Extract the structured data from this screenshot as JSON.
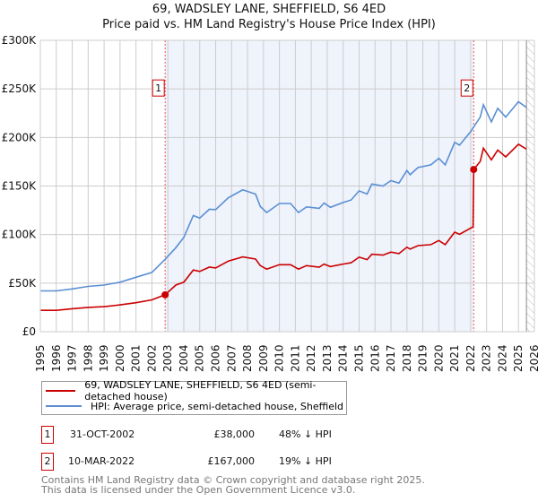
{
  "title": "69, WADSLEY LANE, SHEFFIELD, S6 4ED",
  "subtitle": "Price paid vs. HM Land Registry's House Price Index (HPI)",
  "colors": {
    "property": "#cc0000",
    "hpi": "#5b8fd4",
    "shade": "#eef3fc"
  },
  "chart_data": {
    "type": "line",
    "title": "69, WADSLEY LANE, SHEFFIELD, S6 4ED",
    "ylabel": "",
    "xlabel": "",
    "xlim": [
      1995,
      2026
    ],
    "ylim": [
      0,
      300000
    ],
    "yticks": [
      {
        "v": 0,
        "label": "£0"
      },
      {
        "v": 50000,
        "label": "£50K"
      },
      {
        "v": 100000,
        "label": "£100K"
      },
      {
        "v": 150000,
        "label": "£150K"
      },
      {
        "v": 200000,
        "label": "£200K"
      },
      {
        "v": 250000,
        "label": "£250K"
      },
      {
        "v": 300000,
        "label": "£300K"
      }
    ],
    "xticks": [
      "1995",
      "1996",
      "1997",
      "1998",
      "1999",
      "2000",
      "2001",
      "2002",
      "2003",
      "2004",
      "2005",
      "2006",
      "2007",
      "2008",
      "2009",
      "2010",
      "2011",
      "2012",
      "2013",
      "2014",
      "2015",
      "2016",
      "2017",
      "2018",
      "2019",
      "2020",
      "2021",
      "2022",
      "2023",
      "2024",
      "2025",
      "2026"
    ],
    "grid": true,
    "shaded_range": [
      2002.83,
      2022.19
    ],
    "forecast_hatch_from": 2025.5,
    "series": [
      {
        "name": "69, WADSLEY LANE, SHEFFIELD, S6 4ED (semi-detached house)",
        "color": "#cc0000",
        "x": [
          1995,
          1996,
          1997,
          1998,
          1999,
          2000,
          2001,
          2002,
          2002.83,
          2003.5,
          2004,
          2004.6,
          2005,
          2005.6,
          2006,
          2006.8,
          2007.7,
          2008.5,
          2008.8,
          2009.2,
          2010,
          2010.7,
          2011.2,
          2011.7,
          2012.5,
          2012.8,
          2013.2,
          2014,
          2014.5,
          2015,
          2015.5,
          2015.8,
          2016.5,
          2017,
          2017.5,
          2018,
          2018.2,
          2018.7,
          2019.5,
          2020,
          2020.4,
          2021,
          2021.3,
          2022.15,
          2022.19,
          2022.6,
          2022.8,
          2023.3,
          2023.7,
          2024.2,
          2025,
          2025.5
        ],
        "y": [
          22000,
          22000,
          23600,
          25000,
          25800,
          27600,
          29800,
          32800,
          38000,
          48000,
          51000,
          63500,
          62000,
          66500,
          65600,
          72700,
          77000,
          74800,
          68000,
          64400,
          69000,
          69000,
          64400,
          68000,
          66500,
          69600,
          67000,
          69600,
          71000,
          76700,
          74200,
          79800,
          78800,
          82000,
          80400,
          87000,
          85000,
          88600,
          89600,
          93900,
          89600,
          102500,
          100300,
          108000,
          167000,
          175400,
          189000,
          177000,
          187000,
          180000,
          193000,
          188000
        ]
      },
      {
        "name": "HPI: Average price, semi-detached house, Sheffield",
        "color": "#5b8fd4",
        "x": [
          1995,
          1996,
          1997,
          1998,
          1999,
          2000,
          2001,
          2002,
          2002.8,
          2003.5,
          2004,
          2004.6,
          2005,
          2005.6,
          2006,
          2006.8,
          2007.7,
          2008.5,
          2008.8,
          2009.2,
          2010,
          2010.7,
          2011.2,
          2011.7,
          2012.5,
          2012.8,
          2013.2,
          2014,
          2014.5,
          2015,
          2015.5,
          2015.8,
          2016.5,
          2017,
          2017.5,
          2018,
          2018.2,
          2018.7,
          2019.5,
          2020,
          2020.4,
          2021,
          2021.3,
          2022,
          2022.6,
          2022.8,
          2023.3,
          2023.7,
          2024.2,
          2025,
          2025.5
        ],
        "y": [
          42000,
          42000,
          44000,
          46600,
          48000,
          51000,
          56000,
          61000,
          74000,
          86500,
          97000,
          119600,
          117000,
          126000,
          125700,
          138000,
          146000,
          141700,
          129000,
          122700,
          132000,
          132000,
          122700,
          128500,
          127000,
          132500,
          128000,
          133000,
          135600,
          145000,
          141700,
          152000,
          150000,
          155500,
          153000,
          166000,
          161600,
          169000,
          171800,
          178500,
          171800,
          195000,
          192000,
          206000,
          221000,
          233700,
          216000,
          230000,
          221000,
          236800,
          231000
        ]
      }
    ],
    "annotations": [
      {
        "label": "1",
        "x": 2002.83,
        "y": 38000
      },
      {
        "label": "2",
        "x": 2022.19,
        "y": 167000
      }
    ]
  },
  "legend": {
    "property": "69, WADSLEY LANE, SHEFFIELD, S6 4ED (semi-detached house)",
    "hpi": "HPI: Average price, semi-detached house, Sheffield"
  },
  "transactions": [
    {
      "num": "1",
      "date": "31-OCT-2002",
      "price": "£38,000",
      "hpi": "48% ↓ HPI"
    },
    {
      "num": "2",
      "date": "10-MAR-2022",
      "price": "£167,000",
      "hpi": "19% ↓ HPI"
    }
  ],
  "footer": {
    "line1": "Contains HM Land Registry data © Crown copyright and database right 2025.",
    "line2": "This data is licensed under the Open Government Licence v3.0."
  }
}
